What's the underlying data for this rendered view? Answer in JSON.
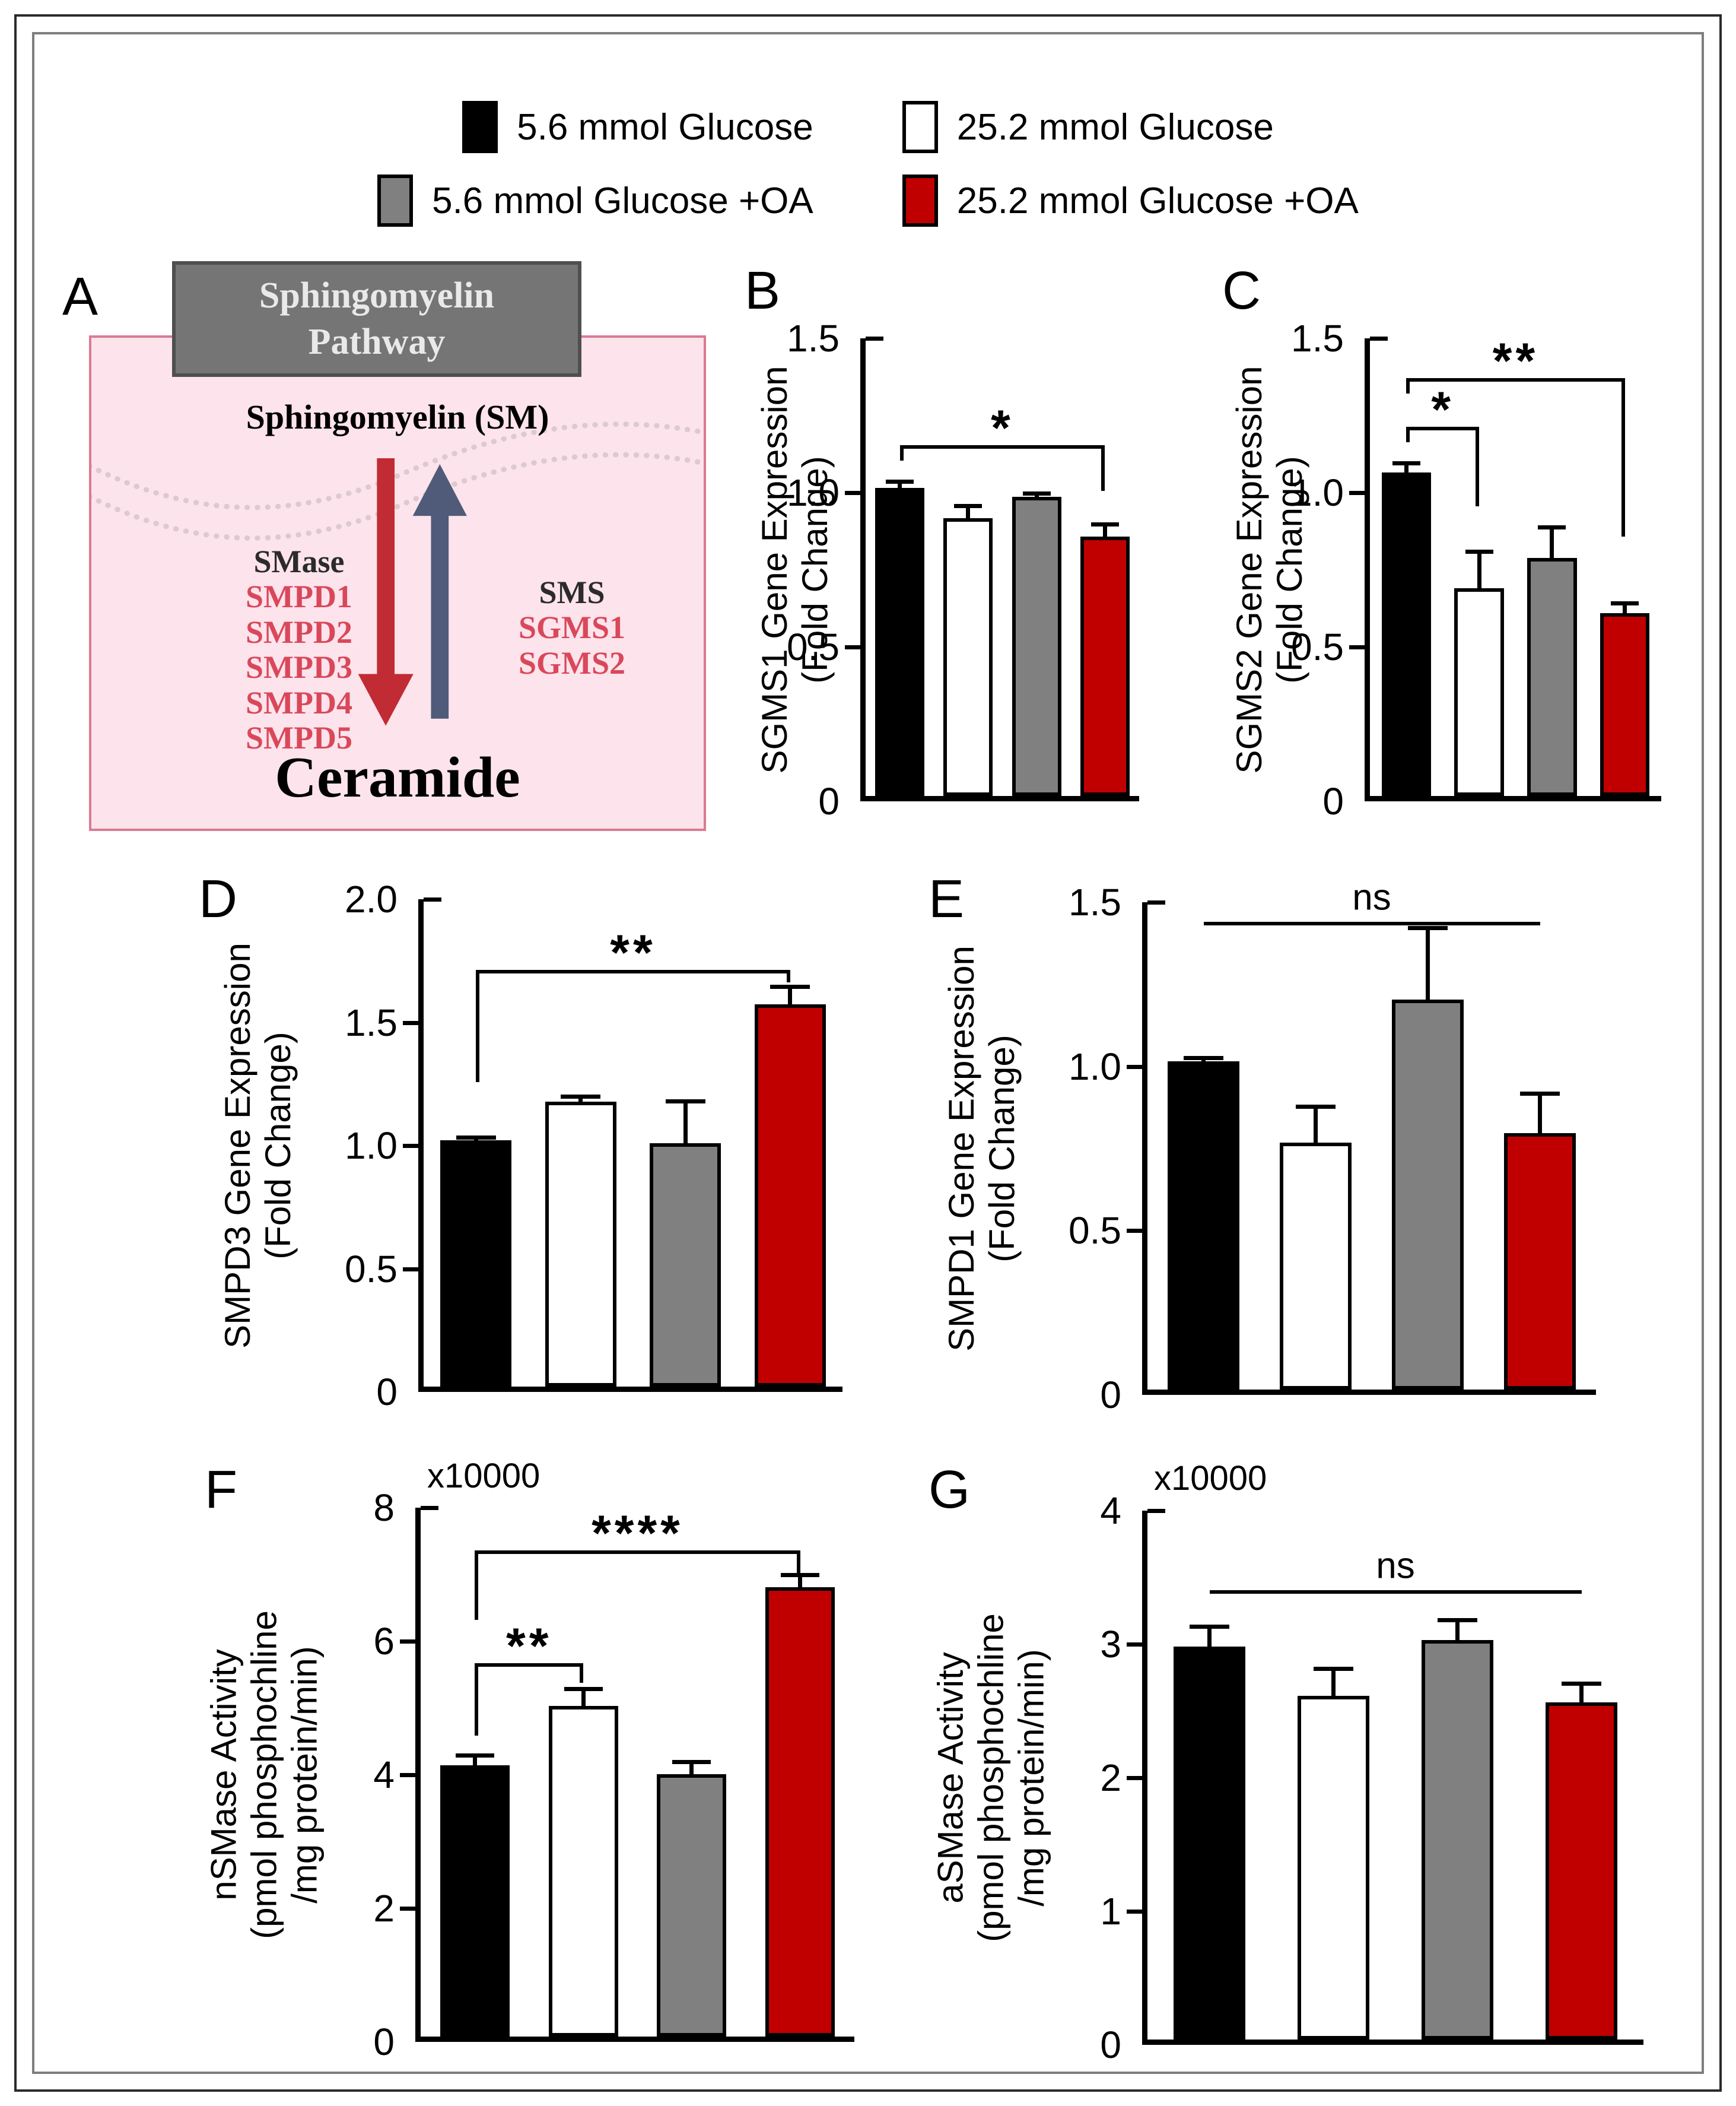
{
  "legend": {
    "rows": [
      [
        {
          "label": "5.6 mmol Glucose",
          "color": "#000000"
        },
        {
          "label": "25.2 mmol Glucose",
          "color": "#ffffff"
        }
      ],
      [
        {
          "label": "5.6 mmol Glucose +OA",
          "color": "#808080"
        },
        {
          "label": "25.2 mmol Glucose +OA",
          "color": "#c00000"
        }
      ]
    ]
  },
  "panelA": {
    "letter": "A",
    "header_lines": [
      "Sphingomyelin",
      "Pathway"
    ],
    "substrate": "Sphingomyelin (SM)",
    "left_enzyme_title": "SMase",
    "left_genes": [
      "SMPD1",
      "SMPD2",
      "SMPD3",
      "SMPD4",
      "SMPD5"
    ],
    "right_enzyme_title": "SMS",
    "right_genes": [
      "SGMS1",
      "SGMS2"
    ],
    "product": "Ceramide",
    "colors": {
      "header_fill": "#757575",
      "header_text": "#e9e9e9",
      "box_fill": "#fce3ec",
      "box_border": "#d97b93",
      "down_arrow": "#c12b33",
      "up_arrow": "#4f5b79",
      "gene_text": "#d9485a",
      "membrane_dots": "#d9c6cc"
    }
  },
  "chart_data": [
    {
      "panel": "B",
      "type": "bar",
      "ylabel_lines": [
        "SGMS1 Gene Expression",
        "(Fold Change)"
      ],
      "ylim": [
        0,
        1.5
      ],
      "yticks": [
        0,
        0.5,
        1.0,
        1.5
      ],
      "ytick_labels": [
        "0",
        "0.5",
        "1.0",
        "1.5"
      ],
      "categories": [
        "5.6 mmol Glucose",
        "25.2 mmol Glucose",
        "5.6 mmol Glucose +OA",
        "25.2 mmol Glucose +OA"
      ],
      "values": [
        1.01,
        0.91,
        0.98,
        0.85
      ],
      "errors": [
        0.02,
        0.04,
        0.01,
        0.04
      ],
      "bar_colors": [
        "#000000",
        "#ffffff",
        "#808080",
        "#c00000"
      ],
      "multiplier": null,
      "significance": [
        {
          "from": 0,
          "to": 3,
          "y": 1.15,
          "label": "*",
          "left_drop": 1.1,
          "right_drop": 1.0
        }
      ]
    },
    {
      "panel": "C",
      "type": "bar",
      "ylabel_lines": [
        "SGMS2 Gene Expression",
        "(Fold Change)"
      ],
      "ylim": [
        0,
        1.5
      ],
      "yticks": [
        0,
        0.5,
        1.0,
        1.5
      ],
      "ytick_labels": [
        "0",
        "0.5",
        "1.0",
        "1.5"
      ],
      "categories": [
        "5.6 mmol Glucose",
        "25.2 mmol Glucose",
        "5.6 mmol Glucose +OA",
        "25.2 mmol Glucose +OA"
      ],
      "values": [
        1.06,
        0.68,
        0.78,
        0.6
      ],
      "errors": [
        0.03,
        0.12,
        0.1,
        0.03
      ],
      "bar_colors": [
        "#000000",
        "#ffffff",
        "#808080",
        "#c00000"
      ],
      "multiplier": null,
      "significance": [
        {
          "from": 0,
          "to": 1,
          "y": 1.21,
          "label": "*",
          "left_drop": 1.16,
          "right_drop": 0.95
        },
        {
          "from": 0,
          "to": 3,
          "y": 1.37,
          "label": "**",
          "left_drop": 1.32,
          "right_drop": 0.85
        }
      ]
    },
    {
      "panel": "D",
      "type": "bar",
      "ylabel_lines": [
        "SMPD3 Gene Expression",
        "(Fold Change)"
      ],
      "ylim": [
        0,
        2.0
      ],
      "yticks": [
        0,
        0.5,
        1.0,
        1.5,
        2.0
      ],
      "ytick_labels": [
        "0",
        "0.5",
        "1.0",
        "1.5",
        "2.0"
      ],
      "categories": [
        "5.6 mmol Glucose",
        "25.2 mmol Glucose",
        "5.6 mmol Glucose +OA",
        "25.2 mmol Glucose +OA"
      ],
      "values": [
        1.01,
        1.17,
        1.0,
        1.57
      ],
      "errors": [
        0.01,
        0.02,
        0.17,
        0.07
      ],
      "bar_colors": [
        "#000000",
        "#ffffff",
        "#808080",
        "#c00000"
      ],
      "multiplier": null,
      "significance": [
        {
          "from": 0,
          "to": 3,
          "y": 1.71,
          "label": "**",
          "left_drop": 1.25,
          "right_drop": 1.66
        }
      ]
    },
    {
      "panel": "E",
      "type": "bar",
      "ylabel_lines": [
        "SMPD1 Gene Expression",
        "(Fold Change)"
      ],
      "ylim": [
        0,
        1.5
      ],
      "yticks": [
        0,
        0.5,
        1.0,
        1.5
      ],
      "ytick_labels": [
        "0",
        "0.5",
        "1.0",
        "1.5"
      ],
      "categories": [
        "5.6 mmol Glucose",
        "25.2 mmol Glucose",
        "5.6 mmol Glucose +OA",
        "25.2 mmol Glucose +OA"
      ],
      "values": [
        1.01,
        0.76,
        1.2,
        0.79
      ],
      "errors": [
        0.01,
        0.11,
        0.22,
        0.12
      ],
      "bar_colors": [
        "#000000",
        "#ffffff",
        "#808080",
        "#c00000"
      ],
      "multiplier": null,
      "significance": [
        {
          "from": 0,
          "to": 3,
          "y": 1.44,
          "label": "ns",
          "left_drop": null,
          "right_drop": null
        }
      ]
    },
    {
      "panel": "F",
      "type": "bar",
      "ylabel_lines": [
        "nSMase Activity",
        "(pmol phosphochline",
        "/mg protein/min)"
      ],
      "ylim": [
        0,
        8
      ],
      "yticks": [
        0,
        2,
        4,
        6,
        8
      ],
      "ytick_labels": [
        "0",
        "2",
        "4",
        "6",
        "8"
      ],
      "categories": [
        "5.6 mmol Glucose",
        "25.2 mmol Glucose",
        "5.6 mmol Glucose +OA",
        "25.2 mmol Glucose +OA"
      ],
      "values": [
        4.1,
        5.0,
        3.97,
        6.8
      ],
      "errors": [
        0.15,
        0.25,
        0.18,
        0.18
      ],
      "bar_colors": [
        "#000000",
        "#ffffff",
        "#808080",
        "#c00000"
      ],
      "multiplier": "x10000",
      "significance": [
        {
          "from": 0,
          "to": 1,
          "y": 5.65,
          "label": "**",
          "left_drop": 4.55,
          "right_drop": 5.35
        },
        {
          "from": 0,
          "to": 3,
          "y": 7.35,
          "label": "****",
          "left_drop": 6.3,
          "right_drop": 7.0
        }
      ]
    },
    {
      "panel": "G",
      "type": "bar",
      "ylabel_lines": [
        "aSMase Activity",
        "(pmol phosphochline",
        "/mg protein/min)"
      ],
      "ylim": [
        0,
        4
      ],
      "yticks": [
        0,
        1,
        2,
        3,
        4
      ],
      "ytick_labels": [
        "0",
        "1",
        "2",
        "3",
        "4"
      ],
      "categories": [
        "5.6 mmol Glucose",
        "25.2 mmol Glucose",
        "5.6 mmol Glucose +OA",
        "25.2 mmol Glucose +OA"
      ],
      "values": [
        2.97,
        2.6,
        3.02,
        2.55
      ],
      "errors": [
        0.15,
        0.2,
        0.15,
        0.14
      ],
      "bar_colors": [
        "#000000",
        "#ffffff",
        "#808080",
        "#c00000"
      ],
      "multiplier": "x10000",
      "significance": [
        {
          "from": 0,
          "to": 3,
          "y": 3.4,
          "label": "ns",
          "left_drop": null,
          "right_drop": null
        }
      ]
    }
  ]
}
